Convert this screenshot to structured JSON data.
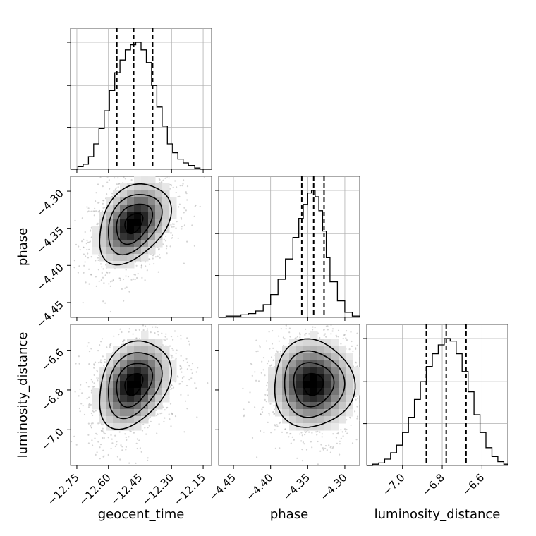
{
  "chart_data": {
    "type": "corner",
    "parameters": [
      {
        "key": "geocent_time",
        "label": "geocent_time",
        "range": [
          -12.78,
          -12.11
        ],
        "ticks": [
          -12.75,
          -12.6,
          -12.45,
          -12.3,
          -12.15
        ],
        "tick_labels": [
          "−12.75",
          "−12.60",
          "−12.45",
          "−12.30",
          "−12.15"
        ],
        "quantiles": [
          -12.56,
          -12.48,
          -12.39
        ],
        "hist_bins": [
          -12.78,
          -12.745,
          -12.72,
          -12.695,
          -12.67,
          -12.645,
          -12.62,
          -12.595,
          -12.57,
          -12.545,
          -12.52,
          -12.495,
          -12.47,
          -12.445,
          -12.42,
          -12.395,
          -12.37,
          -12.345,
          -12.32,
          -12.295,
          -12.27,
          -12.245,
          -12.22,
          -12.19,
          -12.165,
          -12.14,
          -12.11
        ],
        "hist_counts": [
          0.0,
          0.02,
          0.04,
          0.1,
          0.2,
          0.32,
          0.46,
          0.62,
          0.76,
          0.86,
          0.94,
          0.98,
          1.0,
          0.94,
          0.84,
          0.66,
          0.49,
          0.34,
          0.2,
          0.13,
          0.08,
          0.05,
          0.03,
          0.01,
          0.0,
          0.0
        ]
      },
      {
        "key": "phase",
        "label": "phase",
        "range": [
          -4.47,
          -4.28
        ],
        "ticks": [
          -4.45,
          -4.4,
          -4.35,
          -4.3
        ],
        "tick_labels": [
          "−4.45",
          "−4.40",
          "−4.35",
          "−4.30"
        ],
        "quantiles": [
          -4.358,
          -4.342,
          -4.328
        ],
        "hist_bins": [
          -4.47,
          -4.46,
          -4.45,
          -4.44,
          -4.43,
          -4.42,
          -4.41,
          -4.4,
          -4.39,
          -4.38,
          -4.37,
          -4.362,
          -4.356,
          -4.35,
          -4.345,
          -4.34,
          -4.335,
          -4.33,
          -4.325,
          -4.32,
          -4.31,
          -4.3,
          -4.29,
          -4.28
        ],
        "hist_counts": [
          0.0,
          0.01,
          0.01,
          0.02,
          0.03,
          0.05,
          0.1,
          0.18,
          0.3,
          0.46,
          0.63,
          0.78,
          0.89,
          0.98,
          1.0,
          0.95,
          0.84,
          0.68,
          0.47,
          0.28,
          0.13,
          0.04,
          0.01
        ]
      },
      {
        "key": "luminosity_distance",
        "label": "luminosity_distance",
        "range": [
          -7.18,
          -6.47
        ],
        "ticks": [
          -7.0,
          -6.8,
          -6.6
        ],
        "tick_labels": [
          "−7.0",
          "−6.8",
          "−6.6"
        ],
        "quantiles": [
          -6.88,
          -6.78,
          -6.68
        ],
        "hist_bins": [
          -7.18,
          -7.15,
          -7.12,
          -7.09,
          -7.06,
          -7.03,
          -7.0,
          -6.97,
          -6.94,
          -6.91,
          -6.88,
          -6.85,
          -6.82,
          -6.79,
          -6.76,
          -6.73,
          -6.7,
          -6.67,
          -6.64,
          -6.61,
          -6.58,
          -6.55,
          -6.52,
          -6.49,
          -6.47
        ],
        "hist_counts": [
          0.0,
          0.01,
          0.02,
          0.05,
          0.1,
          0.16,
          0.26,
          0.38,
          0.52,
          0.66,
          0.78,
          0.88,
          0.95,
          1.0,
          0.98,
          0.88,
          0.74,
          0.58,
          0.4,
          0.26,
          0.14,
          0.07,
          0.03,
          0.01
        ]
      }
    ],
    "pairs": [
      {
        "x": "geocent_time",
        "y": "phase",
        "center": [
          -12.48,
          -4.343
        ],
        "sigma": [
          0.085,
          0.027
        ],
        "rho": 0.35
      },
      {
        "x": "geocent_time",
        "y": "luminosity_distance",
        "center": [
          -12.48,
          -6.77
        ],
        "sigma": [
          0.085,
          0.11
        ],
        "rho": 0.3
      },
      {
        "x": "phase",
        "y": "luminosity_distance",
        "center": [
          -4.343,
          -6.77
        ],
        "sigma": [
          0.027,
          0.11
        ],
        "rho": 0.0
      }
    ],
    "contour_levels_sigma": [
      0.5,
      1.0,
      1.5,
      2.0
    ],
    "grid": true,
    "colors": {
      "density": "#000000",
      "points": "#a0a0a0",
      "lines": "#000000"
    }
  }
}
